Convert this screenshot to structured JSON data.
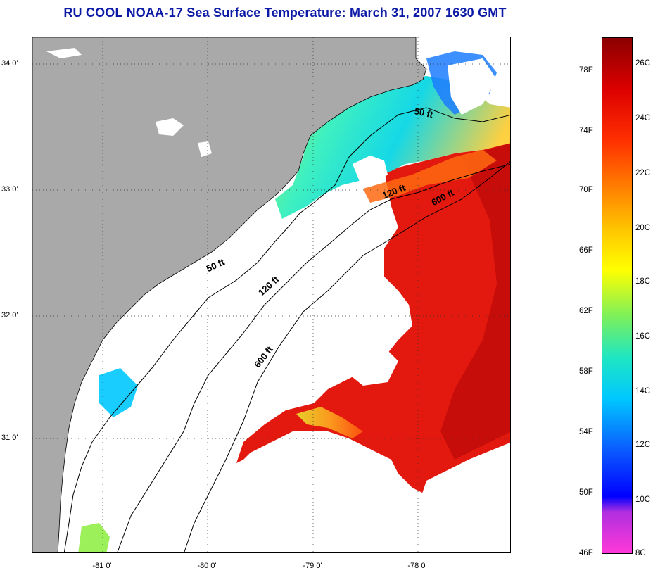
{
  "title": "RU COOL  NOAA-17  Sea Surface Temperature:  March 31, 2007 1630 GMT",
  "axes": {
    "lat_ticks": [
      {
        "label": "34 0'",
        "value": 34.0
      },
      {
        "label": "33 0'",
        "value": 33.0
      },
      {
        "label": "32 0'",
        "value": 32.0
      },
      {
        "label": "31 0'",
        "value": 31.0
      }
    ],
    "lon_ticks": [
      {
        "label": "-81 0'",
        "value": -81.0
      },
      {
        "label": "-80 0'",
        "value": -80.0
      },
      {
        "label": "-79 0'",
        "value": -79.0
      },
      {
        "label": "-78 0'",
        "value": -78.0
      }
    ]
  },
  "isobaths": [
    {
      "label": "50 ft",
      "id": "north"
    },
    {
      "label": "120 ft",
      "id": "north"
    },
    {
      "label": "600 ft",
      "id": "north"
    },
    {
      "label": "50 ft",
      "id": "south"
    },
    {
      "label": "120 ft",
      "id": "south"
    },
    {
      "label": "600 ft",
      "id": "south"
    }
  ],
  "colorbar": {
    "fahrenheit": [
      "78F",
      "74F",
      "70F",
      "66F",
      "62F",
      "58F",
      "54F",
      "50F",
      "46F"
    ],
    "celsius": [
      "26C",
      "24C",
      "22C",
      "20C",
      "18C",
      "16C",
      "14C",
      "12C",
      "10C",
      "8C"
    ]
  },
  "colors": {
    "land": "#a9a9a9",
    "cloud": "#ffffff",
    "warm": "#e11a10",
    "cold": "#00c8ff",
    "title": "#0d1aa6"
  }
}
